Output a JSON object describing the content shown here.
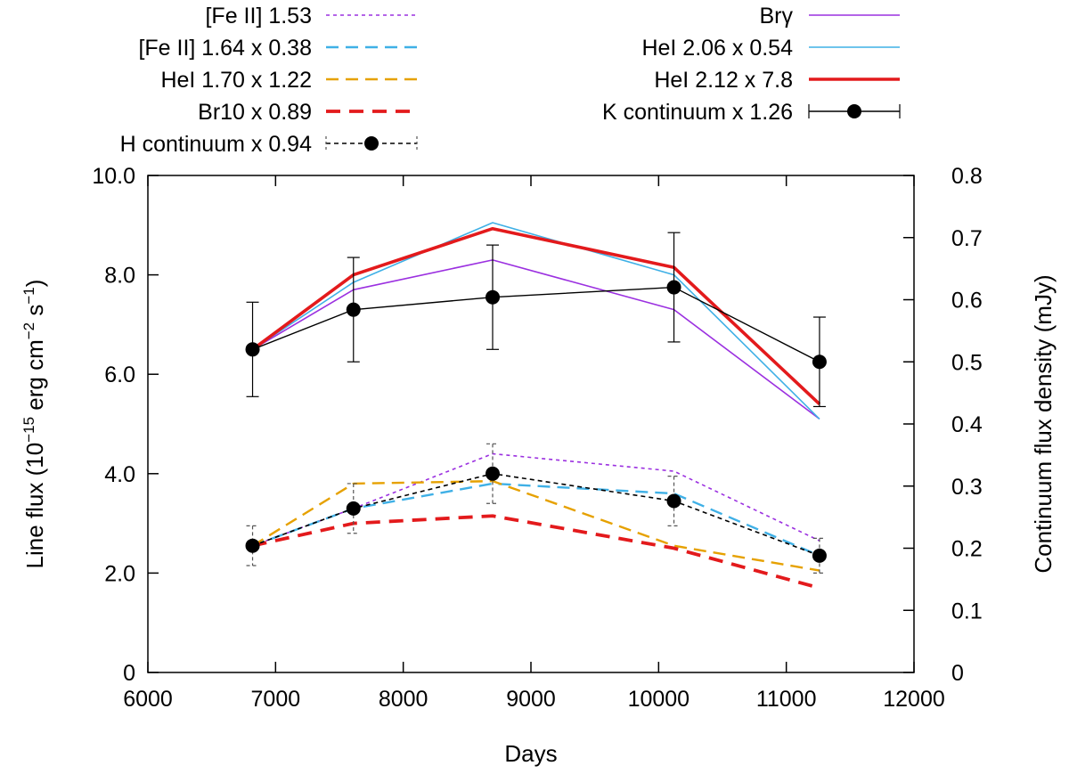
{
  "chart_data": {
    "type": "line",
    "xlabel": "Days",
    "ylabel": "Line flux (10^-15 erg cm^-2 s^-1)",
    "ylabel_parts": {
      "main": "Line flux (10",
      "exp1": "−15",
      "mid1": " erg cm",
      "exp2": "−2",
      "mid2": " s",
      "exp3": "−1",
      "end": ")"
    },
    "y2label": "Continuum flux density (mJy)",
    "xlim": [
      6000,
      12000
    ],
    "ylim": [
      0,
      10
    ],
    "y2lim": [
      0,
      0.8
    ],
    "x_ticks": [
      {
        "value": 6000,
        "label": "6000"
      },
      {
        "value": 7000,
        "label": "7000"
      },
      {
        "value": 8000,
        "label": "8000"
      },
      {
        "value": 9000,
        "label": "9000"
      },
      {
        "value": 10000,
        "label": "10000"
      },
      {
        "value": 11000,
        "label": "11000"
      },
      {
        "value": 12000,
        "label": "12000"
      }
    ],
    "y_ticks": [
      {
        "value": 0,
        "label": "0"
      },
      {
        "value": 2,
        "label": "2.0"
      },
      {
        "value": 4,
        "label": "4.0"
      },
      {
        "value": 6,
        "label": "6.0"
      },
      {
        "value": 8,
        "label": "8.0"
      },
      {
        "value": 10,
        "label": "10.0"
      }
    ],
    "y2_ticks": [
      {
        "value": 0,
        "label": "0"
      },
      {
        "value": 0.1,
        "label": "0.1"
      },
      {
        "value": 0.2,
        "label": "0.2"
      },
      {
        "value": 0.3,
        "label": "0.3"
      },
      {
        "value": 0.4,
        "label": "0.4"
      },
      {
        "value": 0.5,
        "label": "0.5"
      },
      {
        "value": 0.6,
        "label": "0.6"
      },
      {
        "value": 0.7,
        "label": "0.7"
      },
      {
        "value": 0.8,
        "label": "0.8"
      }
    ],
    "grid": false,
    "legend_position": "top",
    "x": [
      6820,
      7610,
      8700,
      10120,
      11260
    ],
    "series": [
      {
        "name": "[Fe II] 1.53",
        "axis": "left",
        "color": "#9b30e0",
        "style": "dotted",
        "y": [
          2.55,
          3.3,
          4.4,
          4.05,
          2.65
        ]
      },
      {
        "name": "[Fe II] 1.64 x 0.38",
        "axis": "left",
        "color": "#3fb0e6",
        "style": "dashed",
        "y": [
          2.55,
          3.3,
          3.8,
          3.6,
          2.35
        ]
      },
      {
        "name": "HeI 1.70 x 1.22",
        "axis": "left",
        "color": "#e6a100",
        "style": "dashed",
        "y": [
          2.55,
          3.8,
          3.85,
          2.55,
          2.05
        ]
      },
      {
        "name": "Br10 x 0.89",
        "axis": "left",
        "color": "#e31a1c",
        "style": "dashed-bold",
        "y": [
          2.55,
          3.0,
          3.15,
          2.5,
          1.7
        ]
      },
      {
        "name": "H continuum x 0.94",
        "axis": "left",
        "color": "#000000",
        "style": "dashed-points-errorbars",
        "y": [
          2.55,
          3.3,
          4.0,
          3.45,
          2.35
        ],
        "yerr": [
          0.4,
          0.5,
          0.6,
          0.5,
          0.35
        ]
      },
      {
        "name": "Brγ",
        "axis": "left",
        "color": "#9b30e0",
        "style": "solid",
        "y": [
          6.5,
          7.7,
          8.3,
          7.3,
          5.1
        ]
      },
      {
        "name": "HeI 2.06 x 0.54",
        "axis": "left",
        "color": "#3fb0e6",
        "style": "solid",
        "y": [
          6.5,
          7.85,
          9.05,
          8.0,
          5.1
        ]
      },
      {
        "name": "HeI 2.12 x 7.8",
        "axis": "left",
        "color": "#e31a1c",
        "style": "solid-bold",
        "y": [
          6.5,
          8.0,
          8.93,
          8.15,
          5.4
        ]
      },
      {
        "name": "K continuum x 1.26",
        "axis": "left",
        "color": "#000000",
        "style": "solid-points-errorbars",
        "y": [
          6.5,
          7.3,
          7.55,
          7.75,
          6.25
        ],
        "yerr": [
          0.95,
          1.05,
          1.05,
          1.1,
          0.9
        ]
      }
    ]
  }
}
